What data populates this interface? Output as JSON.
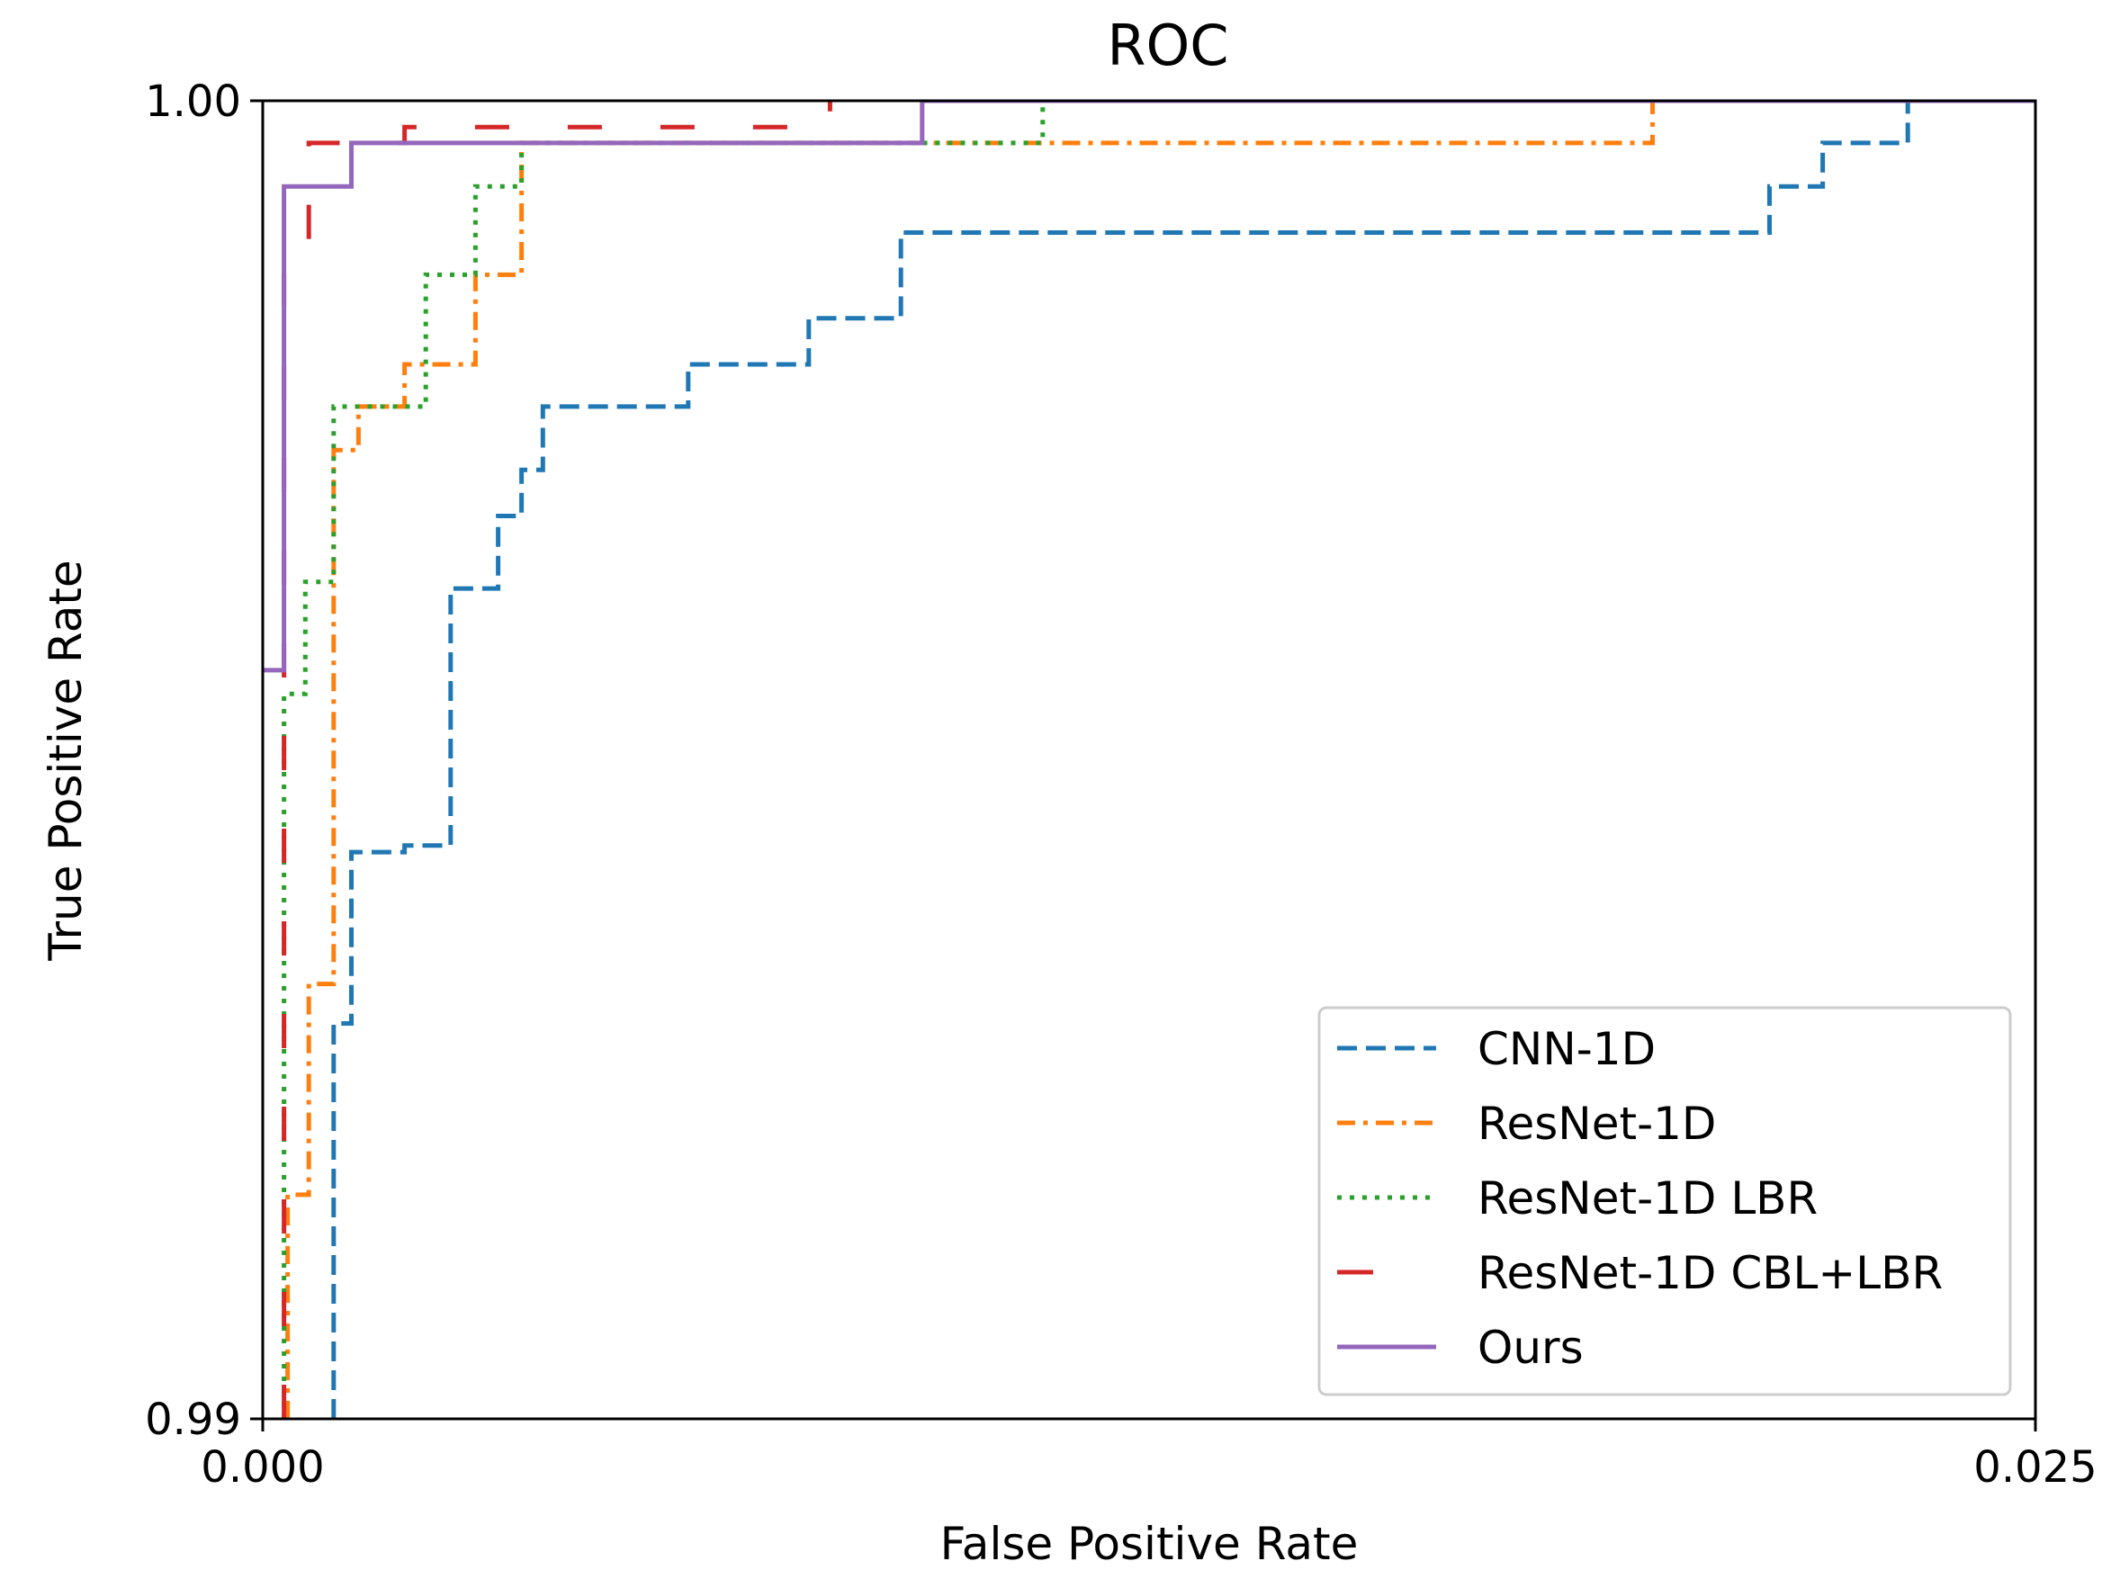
{
  "chart_data": {
    "type": "line",
    "title": "ROC",
    "xlabel": "False Positive Rate",
    "ylabel": "True Positive Rate",
    "xlim": [
      0.0,
      0.025
    ],
    "ylim": [
      0.99,
      1.0
    ],
    "xticks": [
      "0.000",
      "0.025"
    ],
    "yticks": [
      "0.99",
      "1.00"
    ],
    "grid": false,
    "legend_position": "lower-right",
    "series": [
      {
        "name": "CNN-1D",
        "color": "#1f77b4",
        "style": "dashed",
        "x": [
          0.001,
          0.001,
          0.00125,
          0.00125,
          0.002,
          0.002,
          0.00265,
          0.00265,
          0.00332,
          0.00332,
          0.00365,
          0.00365,
          0.00395,
          0.00395,
          0.006,
          0.006,
          0.0077,
          0.0077,
          0.009,
          0.009,
          0.02125,
          0.02125,
          0.022,
          0.022,
          0.0232,
          0.0232
        ],
        "y": [
          0.99,
          0.993,
          0.993,
          0.9943,
          0.9943,
          0.99435,
          0.99435,
          0.9963,
          0.9963,
          0.99685,
          0.99685,
          0.9972,
          0.9972,
          0.99768,
          0.99768,
          0.998,
          0.998,
          0.99835,
          0.99835,
          0.999,
          0.999,
          0.99935,
          0.99935,
          0.99968,
          0.99968,
          1.0
        ]
      },
      {
        "name": "ResNet-1D",
        "color": "#ff7f0e",
        "style": "dashdot",
        "x": [
          0.00035,
          0.00035,
          0.00065,
          0.00065,
          0.001,
          0.001,
          0.00135,
          0.00135,
          0.002,
          0.002,
          0.003,
          0.003,
          0.00365,
          0.00365,
          0.0196,
          0.0196
        ],
        "y": [
          0.99,
          0.9917,
          0.9917,
          0.9933,
          0.9933,
          0.99735,
          0.99735,
          0.99768,
          0.99768,
          0.998,
          0.998,
          0.99868,
          0.99868,
          0.99968,
          0.99968,
          1.0
        ]
      },
      {
        "name": "ResNet-1D LBR",
        "color": "#2ca02c",
        "style": "dotted",
        "x": [
          0.0003,
          0.0003,
          0.0006,
          0.0006,
          0.001,
          0.001,
          0.0023,
          0.0023,
          0.003,
          0.003,
          0.00365,
          0.00365,
          0.011,
          0.011
        ],
        "y": [
          0.99,
          0.9955,
          0.9955,
          0.99635,
          0.99635,
          0.99768,
          0.99768,
          0.99868,
          0.99868,
          0.99935,
          0.99935,
          0.99968,
          0.99968,
          1.0
        ]
      },
      {
        "name": "ResNet-1D CBL+LBR",
        "color": "#d62728",
        "style": "longdash",
        "x": [
          0.0003,
          0.0003,
          0.00065,
          0.00065,
          0.002,
          0.002,
          0.008,
          0.008
        ],
        "y": [
          0.99,
          0.99868,
          0.99868,
          0.99968,
          0.99968,
          0.9998,
          0.9998,
          1.0
        ]
      },
      {
        "name": "Ours",
        "color": "#9467bd",
        "style": "solid",
        "x": [
          0.0,
          0.0003,
          0.0003,
          0.00125,
          0.00125,
          0.0093,
          0.0093,
          0.025
        ],
        "y": [
          0.99568,
          0.99568,
          0.99935,
          0.99935,
          0.99968,
          0.99968,
          1.0,
          1.0
        ]
      }
    ]
  }
}
